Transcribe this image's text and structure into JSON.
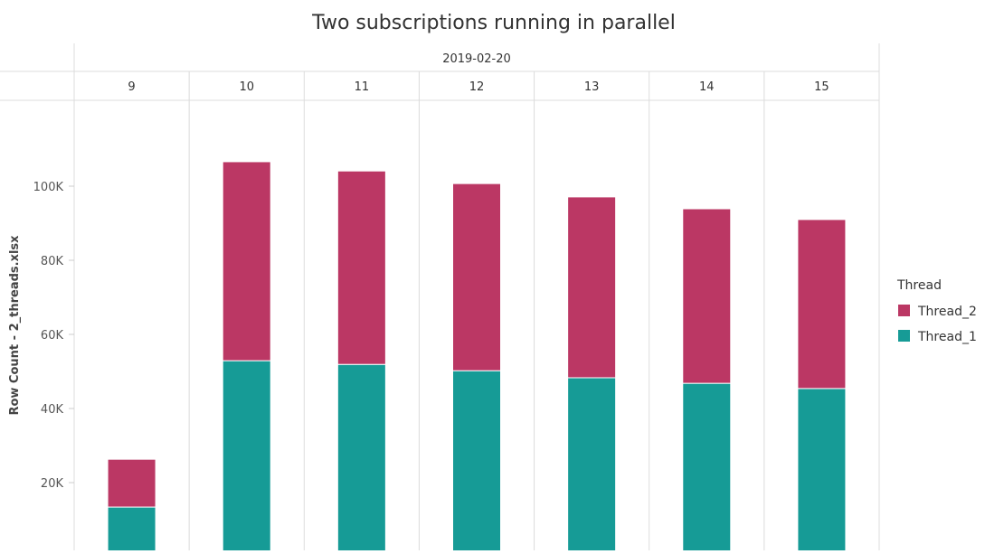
{
  "chart_data": {
    "type": "bar",
    "stacked": true,
    "title": "Two subscriptions running in parallel",
    "column_header": "2019-02-20",
    "categories": [
      "9",
      "10",
      "11",
      "12",
      "13",
      "14",
      "15"
    ],
    "ylabel": "Row Count - 2_threads.xlsx",
    "yticks": [
      {
        "value": 20000,
        "label": "20K"
      },
      {
        "value": 40000,
        "label": "40K"
      },
      {
        "value": 60000,
        "label": "60K"
      },
      {
        "value": 80000,
        "label": "80K"
      },
      {
        "value": 100000,
        "label": "100K"
      }
    ],
    "ylim": [
      0,
      120000
    ],
    "grid": "vertical",
    "legend": {
      "title": "Thread",
      "placement": "right"
    },
    "series": [
      {
        "name": "Thread_1",
        "color": "#169b96",
        "values": [
          13400,
          52900,
          51900,
          50200,
          48300,
          46800,
          45400
        ]
      },
      {
        "name": "Thread_2",
        "color": "#bb3764",
        "values": [
          12900,
          53700,
          52200,
          50500,
          48800,
          47100,
          45600
        ]
      }
    ],
    "legend_order": [
      "Thread_2",
      "Thread_1"
    ]
  }
}
